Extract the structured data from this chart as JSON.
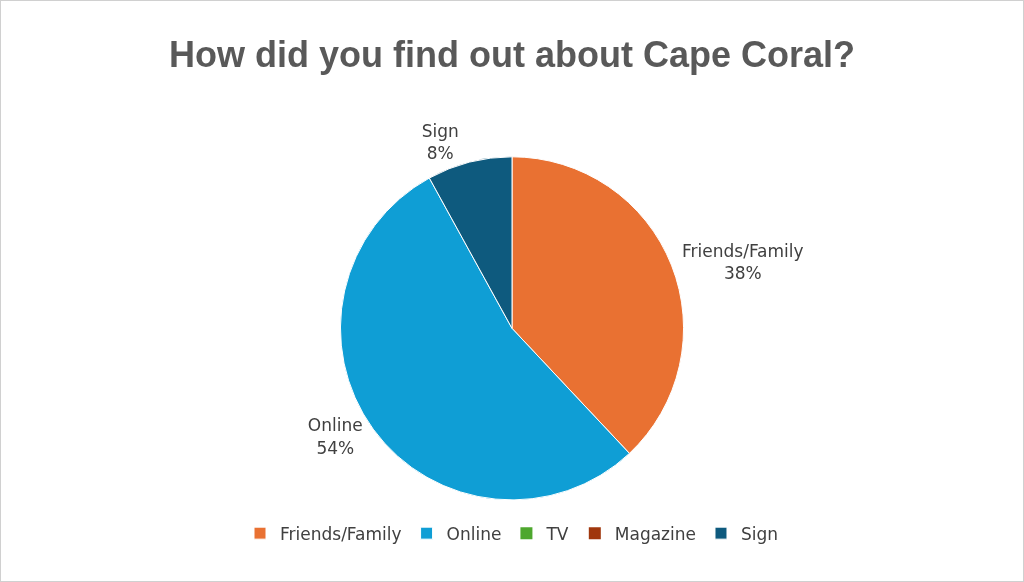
{
  "chart_data": {
    "type": "pie",
    "title": "How did you find out about Cape Coral?",
    "categories": [
      "Friends/Family",
      "Online",
      "TV",
      "Magazine",
      "Sign"
    ],
    "values": [
      38,
      54,
      0,
      0,
      8
    ],
    "value_labels": [
      "38%",
      "54%",
      null,
      null,
      "8%"
    ],
    "colors": [
      "#e97132",
      "#0f9ed5",
      "#4ea72e",
      "#a0370d",
      "#0e5a7e"
    ],
    "legend": "bottom"
  }
}
